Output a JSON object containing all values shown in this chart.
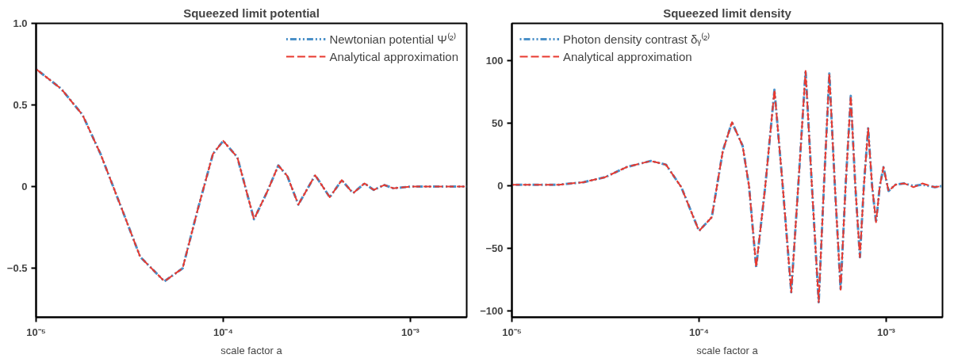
{
  "chart_data": [
    {
      "type": "line",
      "title": "Squeezed limit potential",
      "xlabel": "scale factor a",
      "log": "x",
      "legend": "top right",
      "grid": false,
      "x": [
        1e-05,
        1.36e-05,
        1.77e-05,
        2.21e-05,
        2.88e-05,
        3.6e-05,
        4.85e-05,
        6.07e-05,
        7.31e-05,
        8.81e-05,
        0.0001,
        0.000119,
        0.000146,
        0.000172,
        0.000197,
        0.00022,
        0.000252,
        0.00031,
        0.000371,
        0.00043,
        0.000494,
        0.000569,
        0.000637,
        0.000726,
        0.000811,
        0.001,
        0.002
      ],
      "series": [
        {
          "name": "Newtonian potential Ψ⁽²⁾",
          "color": "#4a90c8",
          "line_style": "dotted",
          "values": [
            0.72,
            0.6,
            0.44,
            0.2,
            -0.14,
            -0.43,
            -0.58,
            -0.5,
            -0.14,
            0.2,
            0.28,
            0.18,
            -0.2,
            -0.03,
            0.13,
            0.065,
            -0.11,
            0.07,
            -0.065,
            0.04,
            -0.04,
            0.02,
            -0.02,
            0.01,
            -0.01,
            0,
            0
          ]
        },
        {
          "name": "Analytical approximation",
          "color": "#e8392f",
          "line_style": "dashed",
          "values": [
            0.72,
            0.6,
            0.44,
            0.2,
            -0.14,
            -0.43,
            -0.58,
            -0.5,
            -0.14,
            0.2,
            0.28,
            0.18,
            -0.2,
            -0.03,
            0.13,
            0.065,
            -0.11,
            0.07,
            -0.065,
            0.04,
            -0.04,
            0.02,
            -0.02,
            0.01,
            -0.01,
            0,
            0
          ]
        }
      ],
      "xlim": [
        1e-05,
        0.002
      ],
      "xticks": [
        {
          "value": 1e-05,
          "label": "10⁻⁵"
        },
        {
          "value": 0.0001,
          "label": "10⁻⁴"
        },
        {
          "value": 0.001,
          "label": "10⁻³"
        }
      ],
      "ylim": [
        -0.8,
        1.0
      ],
      "yticks": [
        {
          "value": -0.5,
          "label": "−0.5"
        },
        0,
        {
          "value": 0.5,
          "label": "0.5"
        },
        {
          "value": 1.0,
          "label": "1.0"
        }
      ]
    },
    {
      "type": "line",
      "title": "Squeezed limit density",
      "xlabel": "scale factor a",
      "log": "x",
      "legend": "top left",
      "grid": false,
      "x": [
        1e-05,
        1.79e-05,
        2.42e-05,
        3.15e-05,
        4.09e-05,
        5.52e-05,
        6.66e-05,
        8.04e-05,
        0.0001,
        0.000117,
        0.000134,
        0.00015,
        0.000171,
        0.000185,
        0.000202,
        0.000226,
        0.000253,
        0.00028,
        0.000311,
        0.000339,
        0.000371,
        0.000401,
        0.000436,
        0.000465,
        0.000497,
        0.000532,
        0.000571,
        0.000607,
        0.000647,
        0.000684,
        0.000724,
        0.00076,
        0.000801,
        0.000841,
        0.000883,
        0.000925,
        0.000967,
        0.00103,
        0.00112,
        0.00125,
        0.0014,
        0.00156,
        0.00182,
        0.002
      ],
      "series": [
        {
          "name": "Photon density contrast δᵧ⁽²⁾",
          "color": "#4a90c8",
          "line_style": "dotted",
          "values": [
            1,
            1,
            3,
            7,
            15,
            20,
            17,
            -1,
            -36,
            -25,
            28,
            51,
            32,
            0,
            -65,
            0,
            77,
            0,
            -85,
            0,
            92,
            0,
            -93,
            0,
            90,
            0,
            -83,
            0,
            72,
            0,
            -57,
            0,
            46,
            0,
            -29,
            0,
            15,
            -4,
            1,
            2,
            0,
            1,
            -1,
            0
          ]
        },
        {
          "name": "Analytical approximation",
          "color": "#e8392f",
          "line_style": "dashed",
          "values": [
            1,
            1,
            3,
            7,
            15,
            20,
            17,
            -1,
            -36,
            -25,
            28,
            51,
            32,
            0,
            -65,
            0,
            77,
            0,
            -85,
            0,
            92,
            0,
            -93,
            0,
            90,
            0,
            -83,
            0,
            72,
            0,
            -57,
            0,
            46,
            0,
            -29,
            0,
            15,
            -4,
            1,
            2,
            -1,
            2,
            -1,
            0
          ]
        }
      ],
      "xlim": [
        1e-05,
        0.002
      ],
      "xticks": [
        {
          "value": 1e-05,
          "label": "10⁻⁵"
        },
        {
          "value": 0.0001,
          "label": "10⁻⁴"
        },
        {
          "value": 0.001,
          "label": "10⁻³"
        }
      ],
      "ylim": [
        -105,
        130
      ],
      "yticks": [
        {
          "value": -100,
          "label": "−100"
        },
        {
          "value": -50,
          "label": "−50"
        },
        0,
        50,
        100
      ]
    }
  ]
}
